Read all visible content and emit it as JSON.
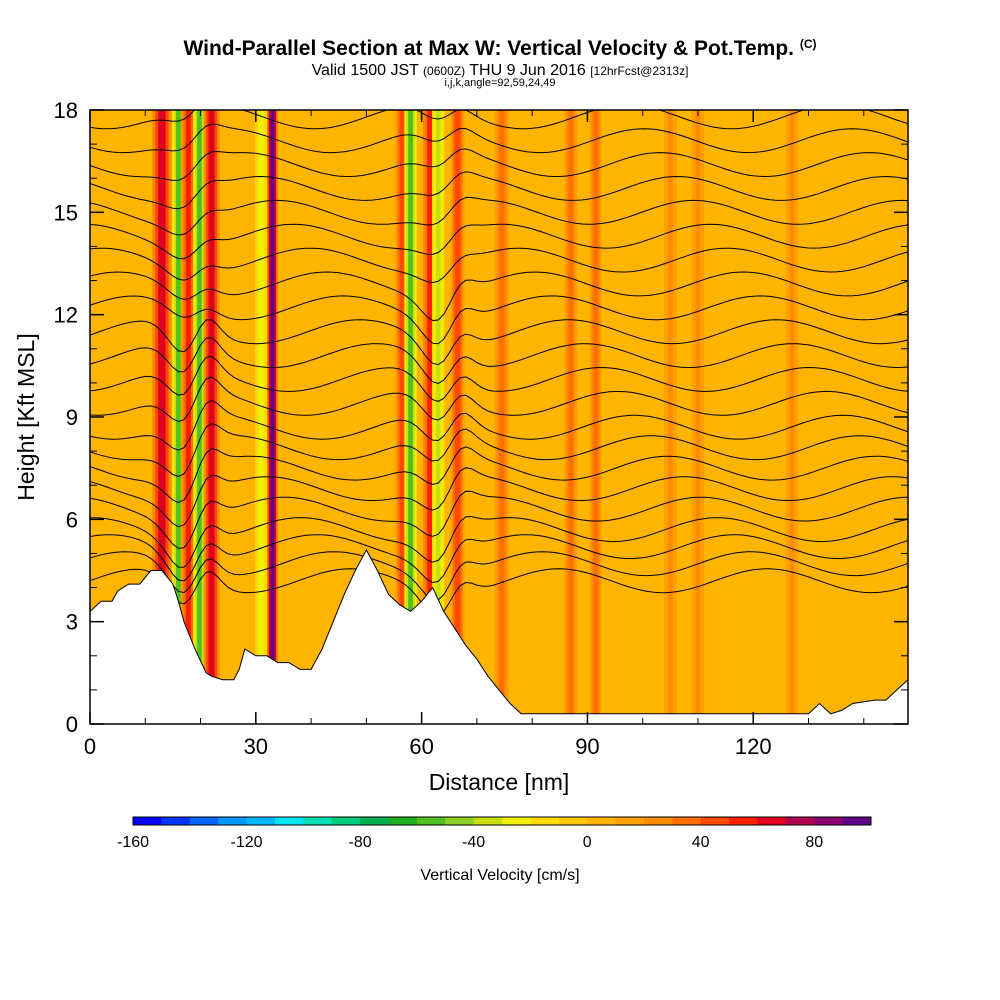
{
  "header": {
    "title_main": "Wind-Parallel Section at Max W: Vertical Velocity & Pot.Temp.",
    "title_mark": "(C)",
    "valid_prefix": "Valid 1500 JST",
    "valid_utc": "(0600Z)",
    "valid_date": "THU 9 Jun 2016",
    "forecast": "[12hrFcst@2313z]",
    "indices": "i,j,k,angle=92,59,24,49"
  },
  "chart_data": {
    "type": "heatmap",
    "xlabel": "Distance [nm]",
    "ylabel": "Height [Kft MSL]",
    "xlim": [
      0,
      148
    ],
    "ylim": [
      0,
      18
    ],
    "x_ticks": [
      0,
      30,
      60,
      90,
      120
    ],
    "y_ticks": [
      0,
      3,
      6,
      9,
      12,
      15,
      18
    ],
    "colorbar": {
      "label": "Vertical Velocity [cm/s]",
      "range": [
        -160,
        100
      ],
      "step": 10,
      "tick_values": [
        -160,
        -120,
        -80,
        -40,
        0,
        40,
        80
      ],
      "colors": [
        "#0000ff",
        "#0033ff",
        "#0066ff",
        "#0099ff",
        "#00b8ff",
        "#00e6f0",
        "#00e0b0",
        "#00cc80",
        "#00b050",
        "#20b020",
        "#50c020",
        "#90d020",
        "#c8e010",
        "#f0f000",
        "#ffdc00",
        "#ffc800",
        "#ffb400",
        "#ffa000",
        "#ff8c00",
        "#ff7000",
        "#ff4a00",
        "#ff2000",
        "#e00020",
        "#b00050",
        "#880070",
        "#600088"
      ]
    },
    "terrain_kft": [
      [
        0,
        3.3
      ],
      [
        2,
        3.6
      ],
      [
        4,
        3.6
      ],
      [
        5,
        3.9
      ],
      [
        7,
        4.1
      ],
      [
        9,
        4.1
      ],
      [
        11,
        4.5
      ],
      [
        13,
        4.5
      ],
      [
        15,
        4.1
      ],
      [
        16,
        3.6
      ],
      [
        17,
        3.0
      ],
      [
        19,
        2.2
      ],
      [
        21,
        1.5
      ],
      [
        22,
        1.4
      ],
      [
        24,
        1.3
      ],
      [
        26,
        1.3
      ],
      [
        27,
        1.6
      ],
      [
        28,
        2.2
      ],
      [
        30,
        2.0
      ],
      [
        32,
        2.0
      ],
      [
        34,
        1.8
      ],
      [
        36,
        1.8
      ],
      [
        38,
        1.6
      ],
      [
        40,
        1.6
      ],
      [
        42,
        2.2
      ],
      [
        44,
        3.0
      ],
      [
        46,
        3.8
      ],
      [
        48,
        4.5
      ],
      [
        50,
        5.1
      ],
      [
        52,
        4.5
      ],
      [
        54,
        3.8
      ],
      [
        56,
        3.5
      ],
      [
        58,
        3.3
      ],
      [
        60,
        3.6
      ],
      [
        62,
        4.0
      ],
      [
        64,
        3.3
      ],
      [
        66,
        2.8
      ],
      [
        68,
        2.3
      ],
      [
        70,
        1.9
      ],
      [
        72,
        1.4
      ],
      [
        74,
        1.0
      ],
      [
        76,
        0.6
      ],
      [
        78,
        0.3
      ],
      [
        80,
        0.3
      ],
      [
        100,
        0.3
      ],
      [
        120,
        0.3
      ],
      [
        130,
        0.3
      ],
      [
        132,
        0.6
      ],
      [
        134,
        0.3
      ],
      [
        136,
        0.4
      ],
      [
        138,
        0.6
      ],
      [
        142,
        0.7
      ],
      [
        144,
        0.7
      ],
      [
        146,
        1.0
      ],
      [
        148,
        1.3
      ]
    ],
    "wv_bands": [
      {
        "x": 13.0,
        "w": 2.2,
        "v": 60
      },
      {
        "x": 16.0,
        "w": 1.4,
        "v": -60
      },
      {
        "x": 17.8,
        "w": 1.6,
        "v": 50
      },
      {
        "x": 19.8,
        "w": 1.4,
        "v": -60
      },
      {
        "x": 22.0,
        "w": 1.8,
        "v": 60
      },
      {
        "x": 31.0,
        "w": 1.4,
        "v": -30
      },
      {
        "x": 33.0,
        "w": 1.2,
        "v": 90
      },
      {
        "x": 56.5,
        "w": 1.6,
        "v": 40
      },
      {
        "x": 58.0,
        "w": 1.4,
        "v": -60
      },
      {
        "x": 61.5,
        "w": 1.6,
        "v": 50
      },
      {
        "x": 63.0,
        "w": 1.4,
        "v": -40
      },
      {
        "x": 66.5,
        "w": 1.6,
        "v": 40
      },
      {
        "x": 74.5,
        "w": 1.6,
        "v": 30
      },
      {
        "x": 87.0,
        "w": 1.4,
        "v": 30
      },
      {
        "x": 91.5,
        "w": 1.4,
        "v": 30
      },
      {
        "x": 105.0,
        "w": 1.4,
        "v": 20
      },
      {
        "x": 110.0,
        "w": 1.4,
        "v": 20
      },
      {
        "x": 127.0,
        "w": 1.4,
        "v": 20
      }
    ],
    "theta_isolines_kft": [
      4.2,
      4.7,
      5.2,
      5.7,
      6.3,
      6.9,
      7.5,
      8.1,
      8.7,
      9.4,
      10.1,
      10.8,
      11.5,
      12.2,
      12.9,
      13.6,
      14.3,
      15.0,
      15.7,
      16.4,
      17.1,
      17.8
    ]
  }
}
